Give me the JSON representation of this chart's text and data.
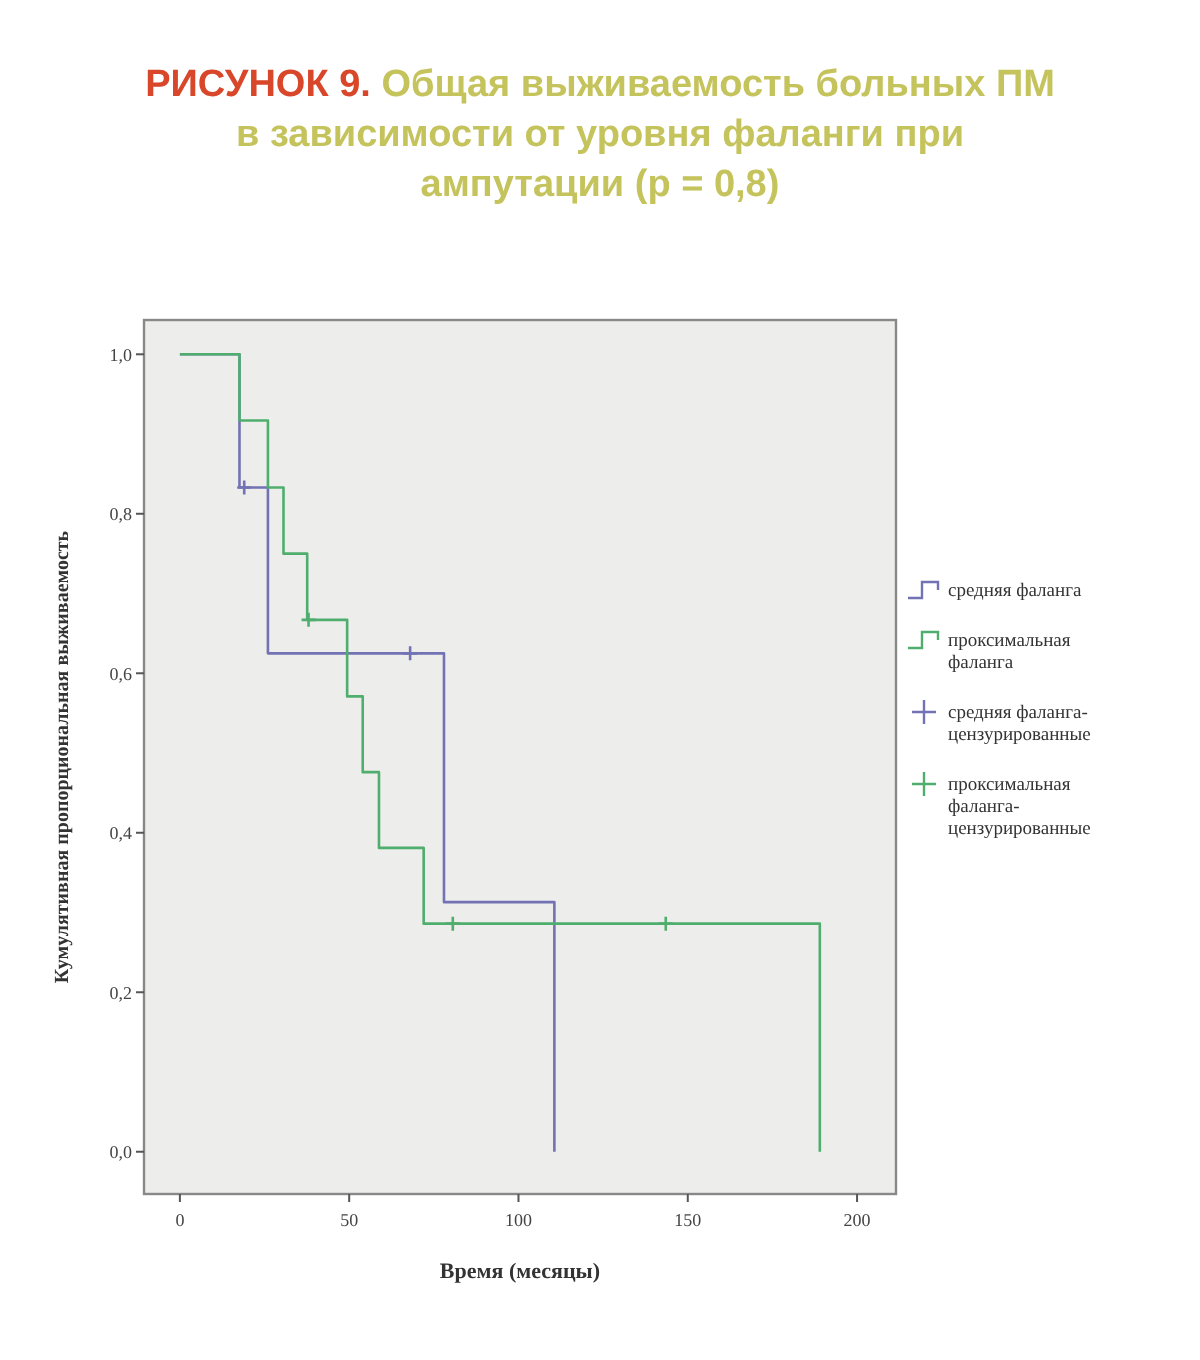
{
  "chart_data": {
    "type": "step",
    "title": "РИСУНОК 9. Общая выживаемость больных ПМ в зависимости от уровня фаланги при ампутации (p = 0,8)",
    "xlabel": "Время (месяцы)",
    "ylabel": "Кумулятивная пропорциональная выживаемость",
    "xlim": [
      -10.6,
      211.5
    ],
    "ylim": [
      -0.053,
      1.043
    ],
    "xticks": [
      0,
      50,
      100,
      150,
      200
    ],
    "yticks": [
      {
        "value": 0,
        "label": "0,0"
      },
      {
        "value": 0.2,
        "label": "0,2"
      },
      {
        "value": 0.4,
        "label": "0,4"
      },
      {
        "value": 0.6,
        "label": "0,6"
      },
      {
        "value": 0.8,
        "label": "0,8"
      },
      {
        "value": 1,
        "label": "1,0"
      }
    ],
    "grid": false,
    "legend": "right",
    "marker": "none",
    "series": [
      {
        "name": "средняя фаланга",
        "color": "#7272b4",
        "x": [
          0,
          17.6,
          26,
          78,
          110.6
        ],
        "values": [
          1,
          0.833,
          0.625,
          0.313,
          0
        ]
      },
      {
        "name": "проксимальная фаланга",
        "color": "#4fae6e",
        "x": [
          0,
          17.6,
          26,
          30.6,
          37.6,
          49.4,
          54,
          58.8,
          72,
          189
        ],
        "values": [
          1,
          0.917,
          0.833,
          0.75,
          0.667,
          0.571,
          0.476,
          0.381,
          0.286,
          0
        ]
      },
      {
        "name": "средняя фаланга-цензурированные",
        "color": "#7272b4",
        "type": "scatter",
        "marker": "cross",
        "x": [
          19,
          68
        ],
        "values": [
          0.833,
          0.625
        ]
      },
      {
        "name": "проксимальная фаланга-цензурированные",
        "color": "#4fae6e",
        "type": "scatter",
        "marker": "cross",
        "x": [
          38,
          80.6,
          143.5
        ],
        "values": [
          0.667,
          0.286,
          0.286
        ]
      }
    ]
  }
}
